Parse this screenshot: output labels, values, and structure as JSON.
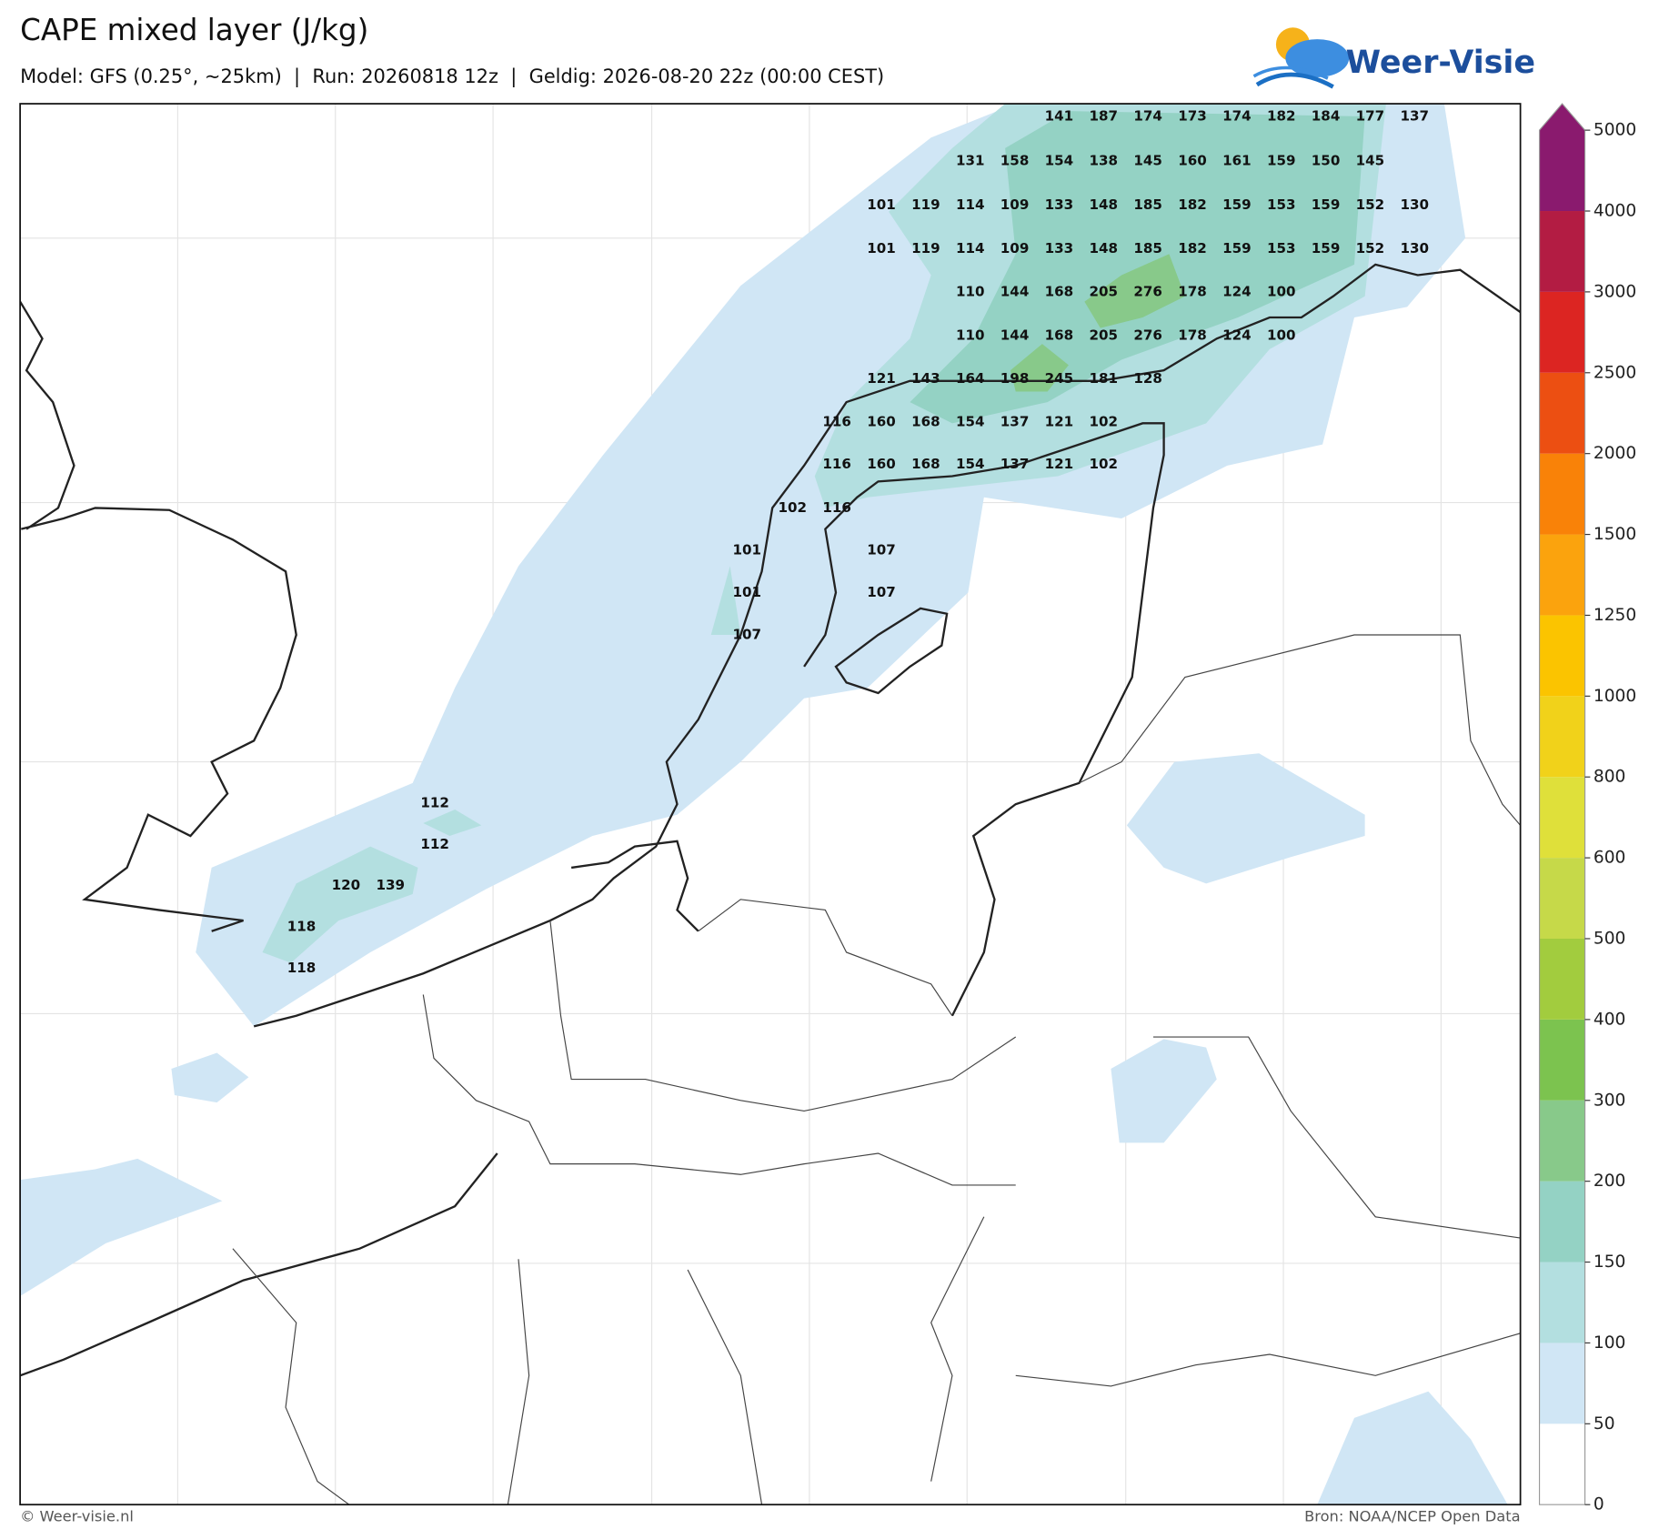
{
  "header": {
    "title": "CAPE mixed layer (J/kg)",
    "subtitle": "Model: GFS (0.25°, ~25km)  |  Run: 20260818 12z  |  Geldig: 2026-08-20 22z (00:00 CEST)",
    "logo": "Weer-Visie"
  },
  "map": {
    "values": [
      141,
      187,
      174,
      173,
      174,
      182,
      184,
      177,
      137,
      131,
      158,
      154,
      138,
      145,
      160,
      161,
      159,
      150,
      145,
      101,
      119,
      114,
      109,
      133,
      148,
      185,
      182,
      159,
      153,
      159,
      152,
      130,
      101,
      119,
      114,
      109,
      133,
      148,
      185,
      182,
      159,
      153,
      159,
      152,
      130,
      110,
      144,
      168,
      205,
      276,
      178,
      124,
      100,
      110,
      144,
      168,
      205,
      276,
      178,
      124,
      100,
      121,
      143,
      164,
      198,
      245,
      181,
      128,
      116,
      160,
      168,
      154,
      137,
      121,
      102,
      116,
      160,
      168,
      154,
      137,
      121,
      102,
      102,
      116,
      101,
      107,
      101,
      107,
      107,
      112,
      112,
      120,
      139,
      118,
      118
    ]
  },
  "colorbar": {
    "ticks": [
      0,
      50,
      100,
      150,
      200,
      300,
      400,
      500,
      600,
      800,
      1000,
      1250,
      1500,
      2000,
      2500,
      3000,
      4000,
      5000
    ],
    "colors": [
      "#ffffff",
      "#d0e6f5",
      "#b3dfe0",
      "#94d2c4",
      "#88c98a",
      "#7cc34f",
      "#a2cc3e",
      "#c6d949",
      "#dfe03a",
      "#f1d21a",
      "#fbc400",
      "#fba30d",
      "#f98208",
      "#ec4f12",
      "#dc2522",
      "#b31c43",
      "#8a1a6e"
    ]
  },
  "footer": {
    "credit": "© Weer-visie.nl",
    "source": "Bron: NOAA/NCEP Open Data"
  }
}
